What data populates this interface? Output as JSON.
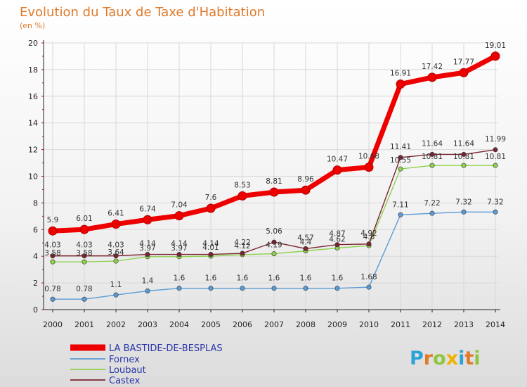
{
  "chart_data": {
    "type": "line",
    "title": "Evolution du Taux de Taxe d'Habitation",
    "subtitle": "(en %)",
    "x": [
      2000,
      2001,
      2002,
      2003,
      2004,
      2005,
      2006,
      2007,
      2008,
      2009,
      2010,
      2011,
      2012,
      2013,
      2014
    ],
    "ylim": [
      0,
      20
    ],
    "yticks": [
      0,
      2,
      4,
      6,
      8,
      10,
      12,
      14,
      16,
      18,
      20
    ],
    "grid": true,
    "legend_position": "bottom-left",
    "series": [
      {
        "name": "LA BASTIDE-DE-BESPLAS",
        "color": "#ee0000",
        "values": [
          5.9,
          6.01,
          6.41,
          6.74,
          7.04,
          7.6,
          8.53,
          8.81,
          8.96,
          10.47,
          10.68,
          16.91,
          17.42,
          17.77,
          19.01
        ],
        "labels": [
          "5.9",
          "6.01",
          "6.41",
          "6.74",
          "7.04",
          "7.6",
          "8.53",
          "8.81",
          "8.96",
          "10.47",
          "10.68",
          "16.91",
          "17.42",
          "17.77",
          "19.01"
        ]
      },
      {
        "name": "Fornex",
        "color": "#5b9bd5",
        "values": [
          0.78,
          0.78,
          1.1,
          1.4,
          1.6,
          1.6,
          1.6,
          1.6,
          1.6,
          1.6,
          1.68,
          7.11,
          7.22,
          7.32,
          7.32
        ],
        "labels": [
          "0.78",
          "0.78",
          "1.1",
          "1.4",
          "1.6",
          "1.6",
          "1.6",
          "1.6",
          "1.6",
          "1.6",
          "1.68",
          "7.11",
          "7.22",
          "7.32",
          "7.32"
        ]
      },
      {
        "name": "Loubaut",
        "color": "#8fd14f",
        "values": [
          3.58,
          3.58,
          3.64,
          3.97,
          3.97,
          4.01,
          4.12,
          4.19,
          4.4,
          4.62,
          4.8,
          10.55,
          10.81,
          10.81,
          10.81
        ],
        "labels": [
          "3.58",
          "3.58",
          "3.64",
          "3.97",
          "3.97",
          "4.01",
          "4.12",
          "4.19",
          "4.4",
          "4.62",
          "4.8",
          "10.55",
          "10.81",
          "10.81",
          "10.81"
        ]
      },
      {
        "name": "Castex",
        "color": "#7b2430",
        "values": [
          4.03,
          4.03,
          4.03,
          4.14,
          4.14,
          4.14,
          4.22,
          5.06,
          4.57,
          4.87,
          4.92,
          11.41,
          11.64,
          11.64,
          11.99
        ],
        "labels": [
          "4.03",
          "4.03",
          "4.03",
          "4.14",
          "4.14",
          "4.14",
          "4.22",
          "5.06",
          "4.57",
          "4.87",
          "4.92",
          "11.41",
          "11.64",
          "11.64",
          "11.99"
        ]
      }
    ]
  },
  "brand": {
    "text": "Proxiti"
  }
}
